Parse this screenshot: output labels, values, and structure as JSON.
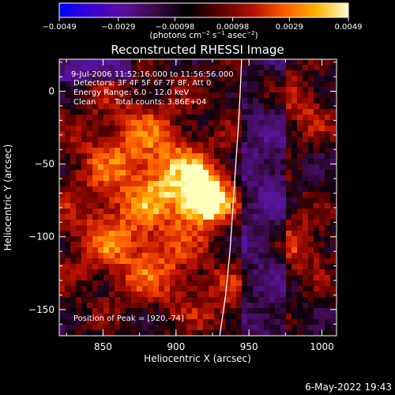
{
  "chart_data": {
    "type": "heatmap",
    "title": "Reconstructed RHESSI Image",
    "xlabel": "Heliocentric X (arcsec)",
    "ylabel": "Heliocentric Y (arcsec)",
    "xlim": [
      820,
      1010
    ],
    "ylim": [
      -168,
      22
    ],
    "x_ticks": [
      "850",
      "900",
      "950",
      "1000"
    ],
    "y_ticks": [
      "0",
      "−50",
      "−100",
      "−150"
    ],
    "x_tick_values": [
      850,
      900,
      950,
      1000
    ],
    "y_tick_values": [
      0,
      -50,
      -100,
      -150
    ],
    "colorbar": {
      "ticks": [
        "−0.0049",
        "−0.0029",
        "−0.00098",
        "0.00098",
        "0.0029",
        "0.0049"
      ],
      "tick_values": [
        -0.0049,
        -0.0029,
        -0.00098,
        0.00098,
        0.0029,
        0.0049
      ],
      "range": [
        -0.0049,
        0.0049
      ],
      "units_prefix": "(photons cm",
      "units_exp1": "−2",
      "units_mid": " s",
      "units_exp2": "−1",
      "units_mid2": " asec",
      "units_exp3": "−2",
      "units_suffix": ")",
      "colormap": [
        "#0000ff",
        "#3a00d0",
        "#5a0fa0",
        "#3a0a45",
        "#000000",
        "#5a0000",
        "#b01000",
        "#ff5a00",
        "#ffb000",
        "#ffffcc"
      ]
    },
    "annotations": {
      "time_range": "9-Jul-2006 11:52:16.000 to 11:56:56.000",
      "detectors": "Detectors: 3F 4F 5F 6F 7F 8F, Att 0",
      "energy": "Energy Range: 6.0 - 12.0 keV",
      "method": "Clean",
      "counts": "Total counts: 3.86E+04",
      "peak": "Position of Peak = [920,-74]"
    },
    "peak": {
      "x": 920,
      "y": -74
    },
    "limb_line": [
      [
        930,
        -168
      ],
      [
        934,
        -140
      ],
      [
        937,
        -110
      ],
      [
        939,
        -80
      ],
      [
        941,
        -50
      ],
      [
        943,
        -20
      ],
      [
        944,
        0
      ],
      [
        945,
        22
      ]
    ],
    "date_stamp": "6-May-2022 19:43"
  }
}
